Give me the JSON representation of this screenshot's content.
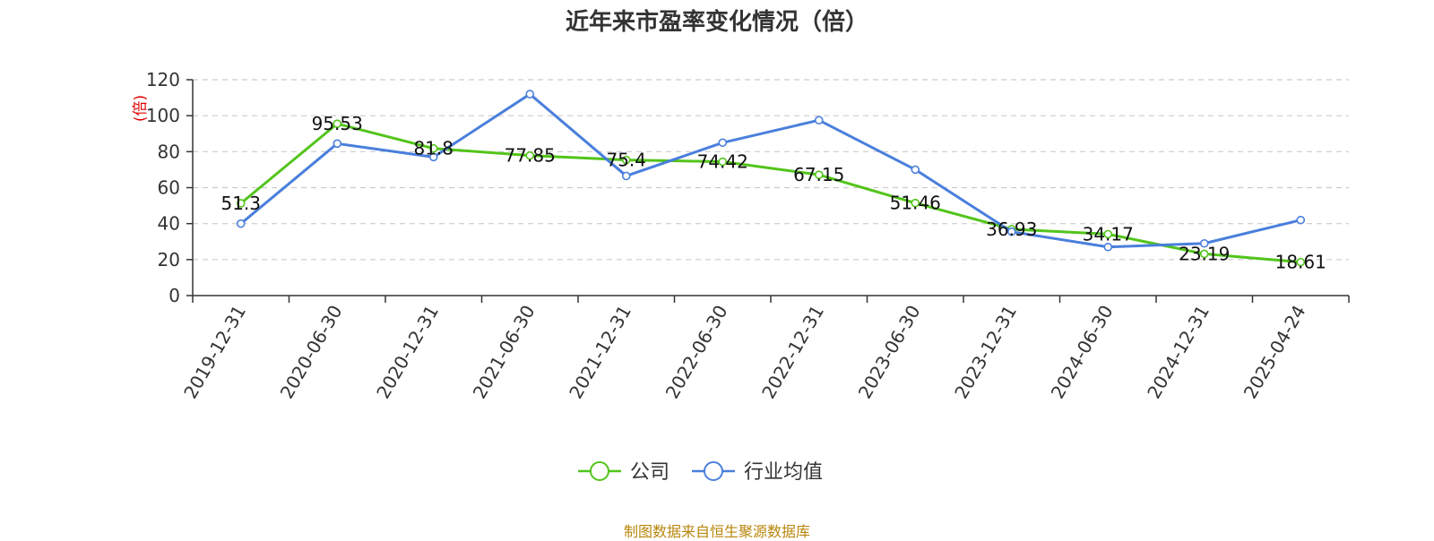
{
  "title": "近年来市盈率变化情况（倍）",
  "source": "制图数据来自恒生聚源数据库",
  "chart_data": {
    "type": "line",
    "title": "近年来市盈率变化情况（倍）",
    "ylabel": "(倍)",
    "xlabel": "",
    "ylim": [
      0,
      120
    ],
    "yticks": [
      0,
      20,
      40,
      60,
      80,
      100,
      120
    ],
    "grid": true,
    "legend": "bottom-center",
    "x": [
      "2019-12-31",
      "2020-06-30",
      "2020-12-31",
      "2021-06-30",
      "2021-12-31",
      "2022-06-30",
      "2022-12-31",
      "2023-06-30",
      "2023-12-31",
      "2024-06-30",
      "2024-12-31",
      "2025-04-24"
    ],
    "series": [
      {
        "name": "公司",
        "color": "#52c41a",
        "values": [
          51.3,
          95.53,
          81.8,
          77.85,
          75.4,
          74.42,
          67.15,
          51.46,
          36.93,
          34.17,
          23.19,
          18.61
        ],
        "data_labels": [
          "51.3",
          "95.53",
          "81.8",
          "77.85",
          "75.4",
          "74.42",
          "67.15",
          "51.46",
          "36.93",
          "34.17",
          "23.19",
          "18.61"
        ]
      },
      {
        "name": "行业均值",
        "color": "#4a7fdc",
        "values": [
          40,
          84.5,
          77,
          112,
          66.5,
          85,
          97.5,
          70,
          35.5,
          27,
          29,
          42
        ]
      }
    ]
  }
}
